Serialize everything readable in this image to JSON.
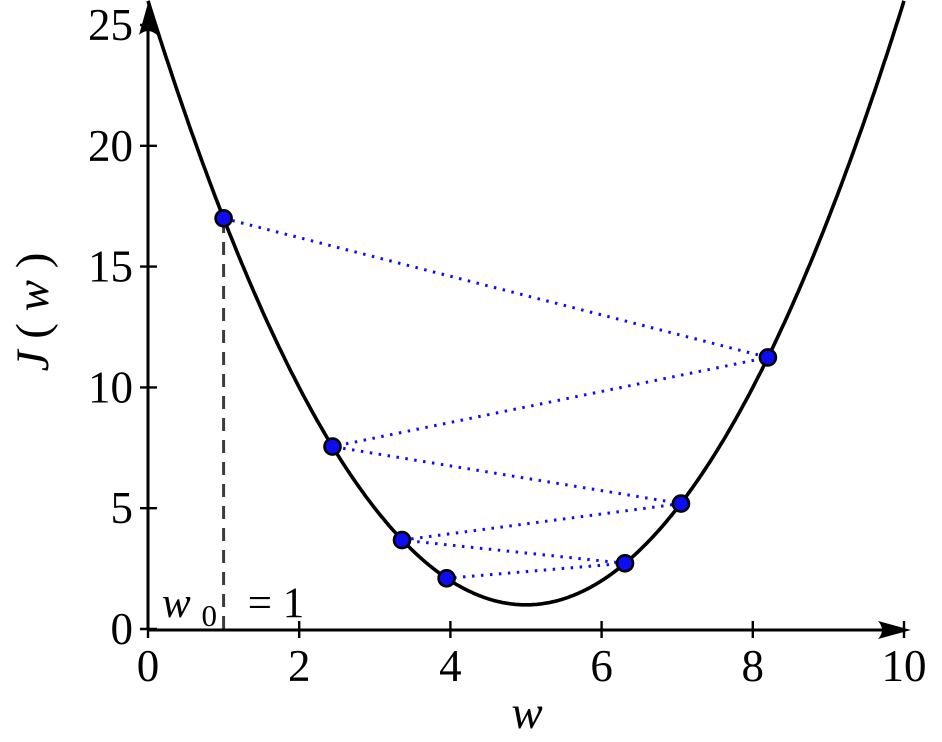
{
  "figure": {
    "xlabel": "w",
    "ylabel": {
      "func": "J",
      "open": "(",
      "arg": "w",
      "close": ")"
    },
    "annotation": {
      "var": "w",
      "sub": "0",
      "eq": "= 1",
      "label": "w₀ = 1"
    }
  },
  "chart_data": {
    "type": "line",
    "title": "",
    "xlabel": "w",
    "ylabel": "J(w)",
    "xlim": [
      0,
      10
    ],
    "ylim": [
      0,
      26
    ],
    "x_ticks": [
      0,
      2,
      4,
      6,
      8,
      10
    ],
    "y_ticks": [
      0,
      5,
      10,
      15,
      20,
      25
    ],
    "grid": false,
    "legend": null,
    "curve": {
      "name": "J(w) = (w - 5)^2 + 1",
      "params": {
        "a": 1,
        "h": 5,
        "k": 1
      },
      "domain": [
        0,
        10.0
      ]
    },
    "descent_points": [
      {
        "w": 1.0,
        "J": 17.0
      },
      {
        "w": 8.2,
        "J": 11.24
      },
      {
        "w": 2.44,
        "J": 7.55
      },
      {
        "w": 7.05,
        "J": 5.19
      },
      {
        "w": 3.36,
        "J": 3.68
      },
      {
        "w": 6.31,
        "J": 2.72
      },
      {
        "w": 3.95,
        "J": 2.1
      }
    ],
    "start_annotation": {
      "label": "w₀ = 1",
      "w": 1,
      "J_top": 17.0
    },
    "colors": {
      "curve": "#000000",
      "axis": "#000000",
      "point_fill": "#0d0df2",
      "point_stroke": "#000000",
      "descent_path": "#0d0df2",
      "dashed_guide": "#3c3c3c"
    }
  }
}
